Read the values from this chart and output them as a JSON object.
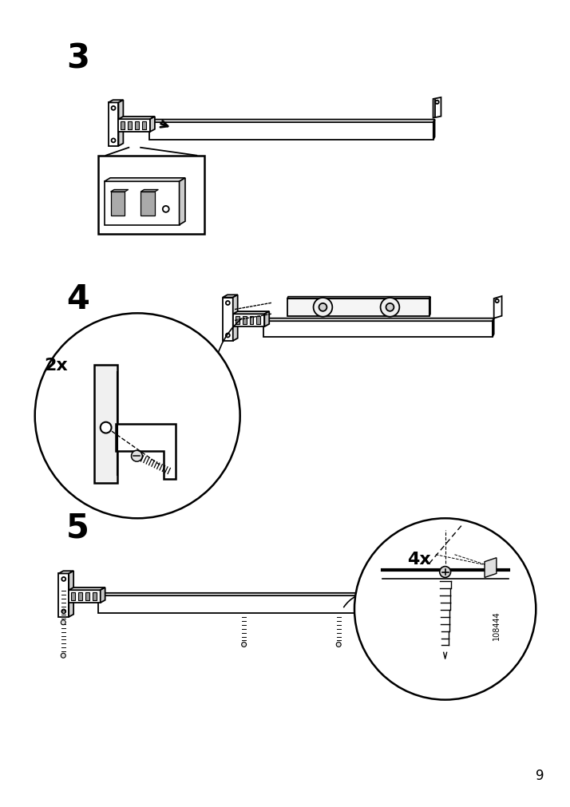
{
  "page_number": "9",
  "bg": "#ffffff",
  "lc": "#000000",
  "figsize": [
    7.14,
    10.12
  ],
  "dpi": 100,
  "step3": "3",
  "step4": "4",
  "step5": "5",
  "label_2x": "2x",
  "label_4x": "4x",
  "part_number": "108444"
}
